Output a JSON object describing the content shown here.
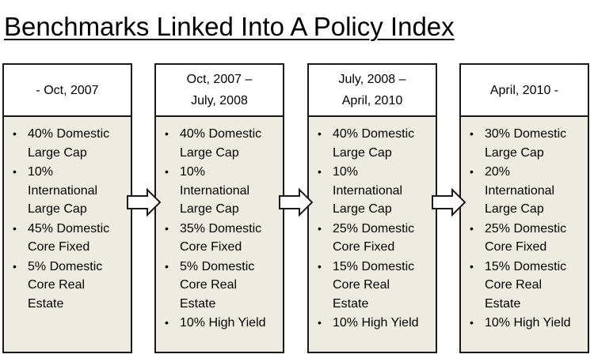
{
  "title": "Benchmarks Linked Into A Policy Index",
  "columns": [
    {
      "header": "- Oct, 2007",
      "items": [
        "40% Domestic\nLarge Cap",
        "10%\nInternational\nLarge Cap",
        "45% Domestic\nCore Fixed",
        "5% Domestic\nCore Real\nEstate"
      ]
    },
    {
      "header": "Oct, 2007 –\nJuly, 2008",
      "items": [
        "40% Domestic\nLarge Cap",
        "10%\nInternational\nLarge Cap",
        "35% Domestic\nCore Fixed",
        "5% Domestic\nCore Real\nEstate",
        "10% High Yield"
      ]
    },
    {
      "header": "July, 2008 –\nApril, 2010",
      "items": [
        "40% Domestic\nLarge Cap",
        "10%\nInternational\nLarge Cap",
        "25% Domestic\nCore Fixed",
        "15% Domestic\nCore Real\nEstate",
        "10% High Yield"
      ]
    },
    {
      "header": "April, 2010 -",
      "items": [
        "30% Domestic\nLarge Cap",
        "20%\nInternational\nLarge Cap",
        "25% Domestic\nCore Fixed",
        "15% Domestic\nCore Real\nEstate",
        "10% High Yield"
      ]
    }
  ]
}
